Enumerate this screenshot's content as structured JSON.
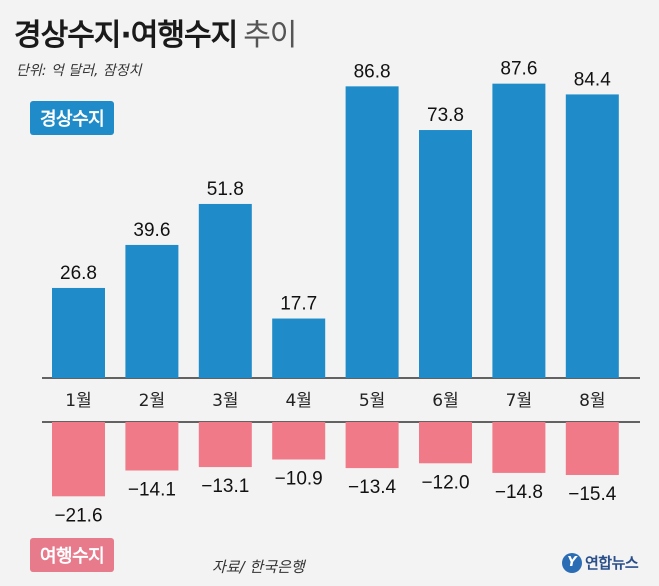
{
  "title": {
    "main": "경상수지·여행수지",
    "sub": "추이"
  },
  "unit_note": "단위: 억 달러, 잠정치",
  "legend": {
    "positive": "경상수지",
    "negative": "여행수지"
  },
  "source": "자료/ 한국은행",
  "logo": {
    "mark": "Y",
    "text": "연합뉴스"
  },
  "colors": {
    "positive": "#1f8cc9",
    "negative": "#f07a88",
    "axis": "#333333"
  },
  "chart_data": {
    "type": "bar",
    "title": "경상수지·여행수지 추이",
    "categories": [
      "1월",
      "2월",
      "3월",
      "4월",
      "5월",
      "6월",
      "7월",
      "8월"
    ],
    "series": [
      {
        "name": "경상수지",
        "values": [
          26.8,
          39.6,
          51.8,
          17.7,
          86.8,
          73.8,
          87.6,
          84.4
        ],
        "labels": [
          "26.8",
          "39.6",
          "51.8",
          "17.7",
          "86.8",
          "73.8",
          "87.6",
          "84.4"
        ]
      },
      {
        "name": "여행수지",
        "values": [
          -21.6,
          -14.1,
          -13.1,
          -10.9,
          -13.4,
          -12.0,
          -14.8,
          -15.4
        ],
        "labels": [
          "−21.6",
          "−14.1",
          "−13.1",
          "−10.9",
          "−13.4",
          "−12.0",
          "−14.8",
          "−15.4"
        ]
      }
    ],
    "ylabel": "억 달러",
    "grid": false
  }
}
